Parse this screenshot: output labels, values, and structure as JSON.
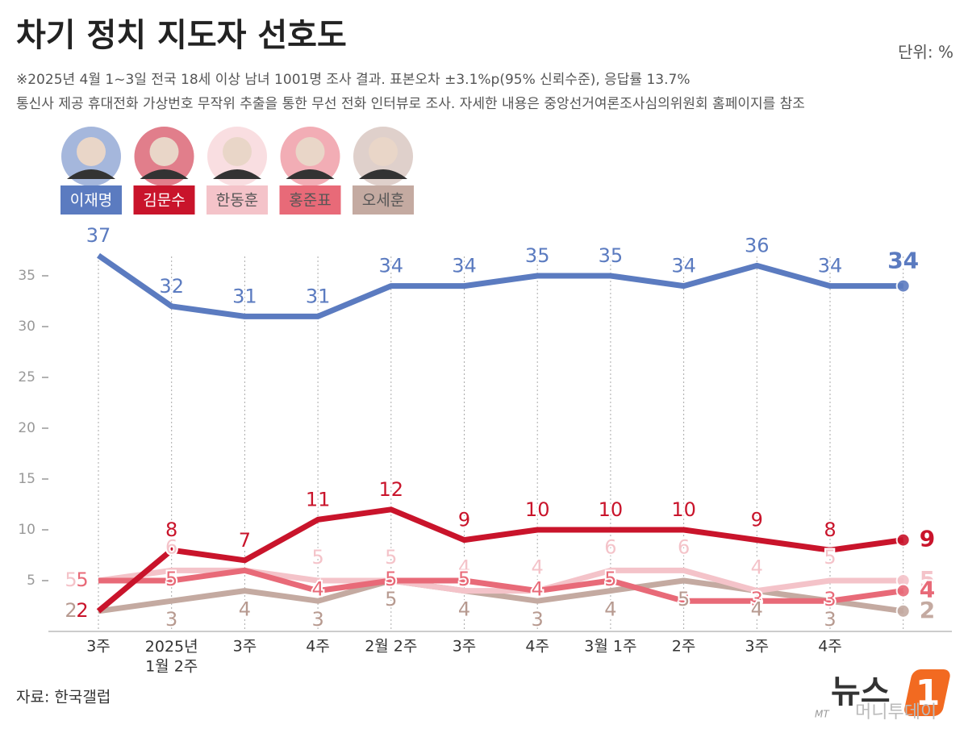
{
  "chart_data": {
    "type": "line",
    "title": "차기 정치 지도자 선호도",
    "unit": "단위: %",
    "subtitle": [
      "※2025년 4월 1~3일 전국 18세 이상 남녀 1001명 조사 결과. 표본오차 ±3.1%p(95% 신뢰수준), 응답률 13.7%",
      "통신사 제공 휴대전화 가상번호 무작위 추출을 통한 무선 전화 인터뷰로 조사. 자세한 내용은 중앙선거여론조사심의위원회 홈페이지를 참조"
    ],
    "source": "자료: 한국갤럽",
    "logo": {
      "brand": "뉴스",
      "number": "1",
      "partner_mark": "MT",
      "partner": "머니투데이"
    },
    "categories": [
      "3주",
      "2025년\n1월 2주",
      "3주",
      "4주",
      "2월 2주",
      "3주",
      "4주",
      "3월 1주",
      "2주",
      "3주",
      "4주",
      null
    ],
    "series": [
      {
        "name": "이재명",
        "color": "#5b7bc0",
        "values": [
          37,
          32,
          31,
          31,
          34,
          34,
          35,
          35,
          34,
          36,
          34,
          34
        ]
      },
      {
        "name": "김문수",
        "color": "#c9142b",
        "values": [
          2,
          8,
          7,
          11,
          12,
          9,
          10,
          10,
          10,
          9,
          8,
          9
        ]
      },
      {
        "name": "한동훈",
        "color": "#f4c3c9",
        "values": [
          5,
          6,
          6,
          5,
          5,
          4,
          4,
          6,
          6,
          4,
          5,
          5
        ],
        "value_labels": [
          "5",
          "6",
          null,
          "5",
          "5",
          "4",
          "4",
          "6",
          "6",
          "4",
          "5",
          "5"
        ]
      },
      {
        "name": "홍준표",
        "color": "#e86a78",
        "values": [
          5,
          5,
          6,
          4,
          5,
          5,
          4,
          5,
          3,
          3,
          3,
          4
        ],
        "value_labels": [
          "5",
          "5",
          null,
          "4",
          "5",
          "5",
          "4",
          "5",
          "3",
          "3",
          "3",
          "4"
        ]
      },
      {
        "name": "오세훈",
        "color": "#c4aaa1",
        "values": [
          2,
          3,
          4,
          3,
          5,
          4,
          3,
          4,
          5,
          4,
          3,
          2
        ]
      }
    ],
    "ylim": [
      0,
      38
    ],
    "yticks": [
      5,
      10,
      15,
      20,
      25,
      30,
      35
    ],
    "grid": true
  }
}
